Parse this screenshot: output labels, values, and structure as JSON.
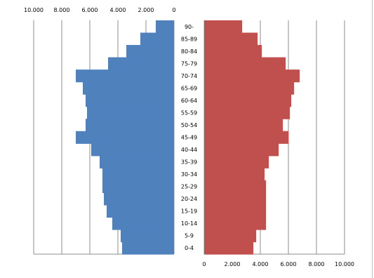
{
  "chart_data": {
    "type": "bar",
    "categories": [
      "0-4",
      "5-9",
      "10-14",
      "15-19",
      "20-24",
      "25-29",
      "30-34",
      "35-39",
      "40-44",
      "45-49",
      "50-54",
      "55-59",
      "60-64",
      "65-69",
      "70-74",
      "75-79",
      "80-84",
      "85-89",
      "90-"
    ],
    "series": [
      {
        "side": "left",
        "color": "#4f81bd",
        "values": [
          3700,
          3800,
          4400,
          4800,
          5000,
          5100,
          5100,
          5300,
          5900,
          7000,
          6300,
          6200,
          6300,
          6500,
          7000,
          4700,
          3400,
          2400,
          1300
        ]
      },
      {
        "side": "right",
        "color": "#c0504d",
        "values": [
          3500,
          3700,
          4400,
          4400,
          4400,
          4400,
          4300,
          4600,
          5300,
          6000,
          5600,
          6100,
          6200,
          6400,
          6800,
          5800,
          4100,
          3800,
          2700
        ]
      }
    ],
    "left_axis": {
      "ticks": [
        "10.000",
        "8.000",
        "6.000",
        "4.000",
        "2.000",
        "0"
      ],
      "range": [
        0,
        10000
      ]
    },
    "right_axis": {
      "ticks": [
        "0",
        "2.000",
        "4.000",
        "6.000",
        "8.000",
        "10.000"
      ],
      "range": [
        0,
        10000
      ]
    },
    "grid": true
  }
}
